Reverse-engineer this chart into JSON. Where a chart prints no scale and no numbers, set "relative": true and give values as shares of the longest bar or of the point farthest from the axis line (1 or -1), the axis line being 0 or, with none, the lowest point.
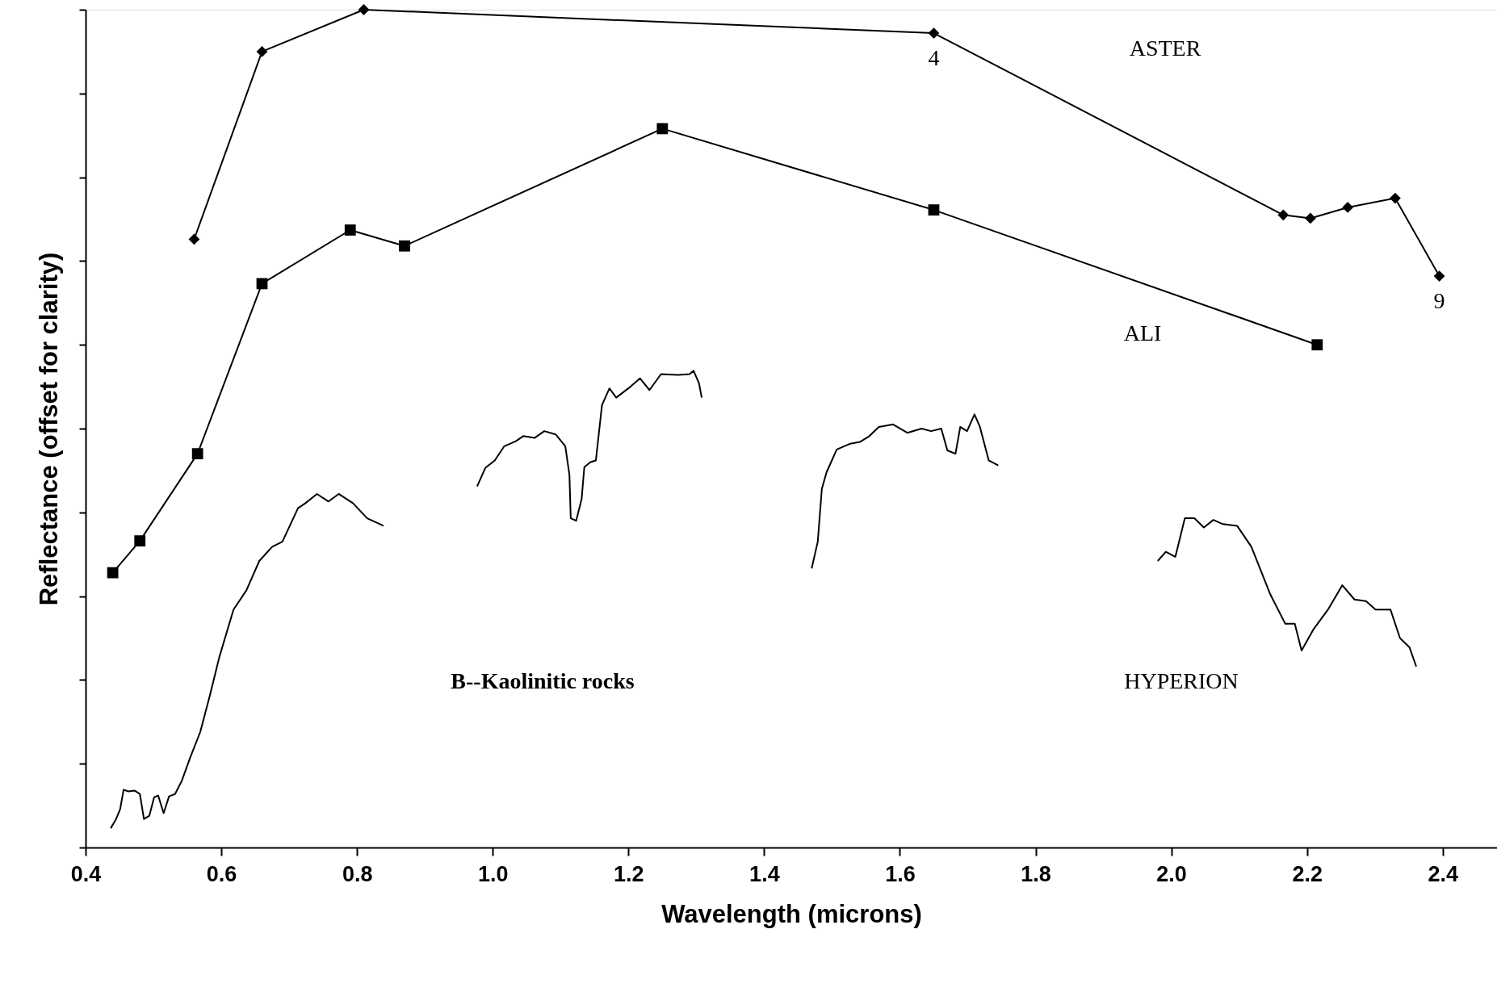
{
  "chart_data": {
    "type": "line",
    "relative": true,
    "xlabel": "Wavelength (microns)",
    "ylabel": "Reflectance (offset for clarity)",
    "xlim": [
      0.4,
      2.48
    ],
    "xticks": [
      0.4,
      0.6,
      0.8,
      {
        "value": 1,
        "label": "1.0"
      },
      1.2,
      1.4,
      1.6,
      1.8,
      {
        "value": 2,
        "label": "2.0"
      },
      2.2,
      2.4
    ],
    "grid": false,
    "series": [
      {
        "name": "ASTER",
        "color": "#000000",
        "marker": "diamond",
        "x": [
          0.56,
          0.66,
          0.81,
          1.65,
          2.165,
          2.205,
          2.26,
          2.33,
          2.395
        ],
        "values": [
          0.726,
          0.95,
          1.0,
          0.972,
          0.755,
          0.751,
          0.764,
          0.775,
          0.682
        ]
      },
      {
        "name": "ALI",
        "color": "#000000",
        "marker": "square",
        "x": [
          0.44,
          0.48,
          0.565,
          0.66,
          0.79,
          0.87,
          1.25,
          1.65,
          2.215
        ],
        "values": [
          0.328,
          0.366,
          0.47,
          0.673,
          0.737,
          0.718,
          0.858,
          0.761,
          0.6
        ]
      },
      {
        "name": "HYPERION",
        "color": "#000000",
        "marker": "none",
        "x": [
          0.437,
          0.445,
          0.451,
          0.456,
          0.463,
          0.472,
          0.48,
          0.486,
          0.494,
          0.501,
          0.507,
          0.515,
          0.523,
          0.532,
          0.542,
          0.554,
          0.569,
          0.583,
          0.597,
          0.618,
          0.637,
          0.656,
          0.675,
          0.69,
          0.713,
          0.724,
          0.741,
          0.758,
          0.773,
          0.794,
          0.815,
          0.839,
          0.9,
          0.977,
          0.989,
          1.003,
          1.017,
          1.034,
          1.045,
          1.062,
          1.076,
          1.093,
          1.107,
          1.113,
          1.115,
          1.123,
          1.131,
          1.135,
          1.144,
          1.152,
          1.161,
          1.172,
          1.182,
          1.203,
          1.217,
          1.231,
          1.248,
          1.273,
          1.29,
          1.296,
          1.304,
          1.308,
          1.4,
          1.47,
          1.479,
          1.485,
          1.492,
          1.507,
          1.527,
          1.541,
          1.555,
          1.569,
          1.59,
          1.611,
          1.632,
          1.646,
          1.661,
          1.67,
          1.682,
          1.689,
          1.699,
          1.71,
          1.718,
          1.731,
          1.745,
          1.85,
          1.98,
          1.992,
          2.006,
          2.02,
          2.034,
          2.048,
          2.062,
          2.076,
          2.097,
          2.118,
          2.146,
          2.168,
          2.182,
          2.192,
          2.21,
          2.231,
          2.252,
          2.27,
          2.287,
          2.301,
          2.323,
          2.337,
          2.351,
          2.361
        ],
        "values": [
          0.023,
          0.034,
          0.046,
          0.069,
          0.067,
          0.068,
          0.064,
          0.034,
          0.038,
          0.06,
          0.062,
          0.041,
          0.061,
          0.064,
          0.08,
          0.107,
          0.138,
          0.181,
          0.227,
          0.284,
          0.307,
          0.342,
          0.359,
          0.365,
          0.405,
          0.411,
          0.422,
          0.413,
          0.422,
          0.411,
          0.393,
          0.384,
          null,
          0.431,
          0.453,
          0.462,
          0.479,
          0.485,
          0.491,
          0.489,
          0.497,
          0.493,
          0.479,
          0.445,
          0.393,
          0.39,
          0.416,
          0.454,
          0.46,
          0.462,
          0.528,
          0.548,
          0.537,
          0.55,
          0.56,
          0.546,
          0.565,
          0.564,
          0.565,
          0.569,
          0.554,
          0.537,
          null,
          0.333,
          0.365,
          0.428,
          0.448,
          0.475,
          0.482,
          0.484,
          0.491,
          0.502,
          0.505,
          0.495,
          0.5,
          0.497,
          0.5,
          0.474,
          0.47,
          0.502,
          0.497,
          0.517,
          0.502,
          0.462,
          0.456,
          null,
          0.342,
          0.353,
          0.347,
          0.393,
          0.393,
          0.382,
          0.391,
          0.386,
          0.384,
          0.359,
          0.302,
          0.267,
          0.267,
          0.235,
          0.261,
          0.284,
          0.313,
          0.296,
          0.294,
          0.284,
          0.284,
          0.25,
          0.239,
          0.216
        ]
      }
    ],
    "annotations": [
      {
        "text": "4",
        "x": 1.65,
        "y": 0.972
      },
      {
        "text": "9",
        "x": 2.395,
        "y": 0.682
      },
      "B--Kaolinitic rocks"
    ]
  }
}
